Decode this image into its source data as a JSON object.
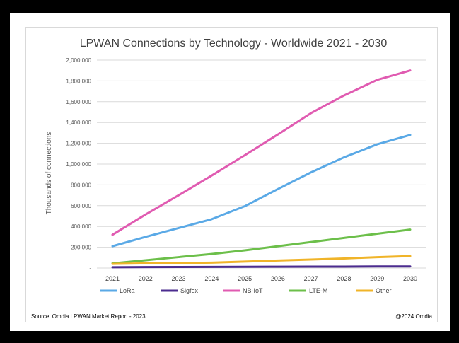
{
  "chart_data": {
    "type": "line",
    "title": "LPWAN Connections by Technology - Worldwide 2021 - 2030",
    "ylabel": "Thousands of connections",
    "xlabel": "",
    "x": [
      "2021",
      "2022",
      "2023",
      "2024",
      "2025",
      "2026",
      "2027",
      "2028",
      "2029",
      "2030"
    ],
    "ylim": [
      0,
      2000000
    ],
    "yticks": [
      0,
      200000,
      400000,
      600000,
      800000,
      1000000,
      1200000,
      1400000,
      1600000,
      1800000,
      2000000
    ],
    "ytick_labels": [
      "-",
      "200,000",
      "400,000",
      "600,000",
      "800,000",
      "1,000,000",
      "1,200,000",
      "1,400,000",
      "1,600,000",
      "1,800,000",
      "2,000,000"
    ],
    "grid": "horizontal",
    "legend_position": "bottom",
    "series": [
      {
        "name": "LoRa",
        "color": "#5aa9e6",
        "values": [
          210000,
          300000,
          385000,
          470000,
          595000,
          760000,
          920000,
          1065000,
          1190000,
          1280000
        ]
      },
      {
        "name": "Sigfox",
        "color": "#4b2c8f",
        "values": [
          8000,
          9000,
          10000,
          11000,
          12000,
          13000,
          14000,
          14000,
          15000,
          15000
        ]
      },
      {
        "name": "NB-IoT",
        "color": "#e05bb1",
        "values": [
          320000,
          515000,
          700000,
          890000,
          1085000,
          1285000,
          1490000,
          1660000,
          1810000,
          1900000
        ]
      },
      {
        "name": "LTE-M",
        "color": "#6cbf4a",
        "values": [
          45000,
          75000,
          105000,
          135000,
          170000,
          210000,
          250000,
          290000,
          330000,
          370000
        ]
      },
      {
        "name": "Other",
        "color": "#f0b429",
        "values": [
          40000,
          45000,
          48000,
          52000,
          62000,
          72000,
          82000,
          92000,
          105000,
          115000
        ]
      }
    ],
    "source": "Source: Omdia LPWAN Market Report - 2023",
    "copyright": "@2024 Omdia"
  },
  "colors": {
    "background": "#000000",
    "grid": "#d9d9d9",
    "axis_text": "#595959",
    "title_text": "#404040"
  }
}
